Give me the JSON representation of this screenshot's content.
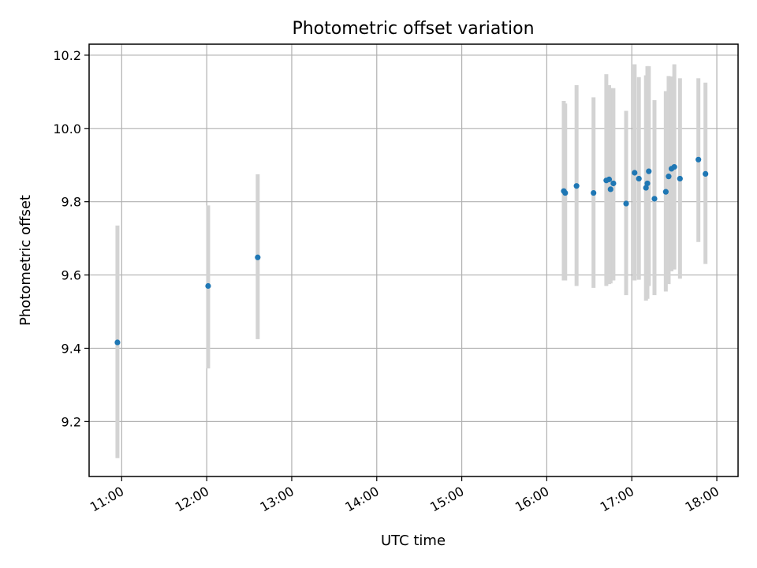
{
  "chart_data": {
    "type": "scatter",
    "title": "Photometric offset variation",
    "xlabel": "UTC time",
    "ylabel": "Photometric offset",
    "grid": true,
    "x_ticks": [
      "11:00",
      "12:00",
      "13:00",
      "14:00",
      "15:00",
      "16:00",
      "17:00",
      "18:00"
    ],
    "x_range": [
      "10:37",
      "18:15"
    ],
    "y_ticks": [
      "9.2",
      "9.4",
      "9.6",
      "9.8",
      "10.0",
      "10.2"
    ],
    "ylim": [
      9.05,
      10.23
    ],
    "colors": {
      "point": "#1f77b4",
      "errorbar": "#d3d3d3"
    },
    "points": [
      {
        "x": "10:57",
        "y": 9.416,
        "lo": 9.1,
        "hi": 9.735
      },
      {
        "x": "12:01",
        "y": 9.57,
        "lo": 9.345,
        "hi": 9.79
      },
      {
        "x": "12:36",
        "y": 9.648,
        "lo": 9.425,
        "hi": 9.875
      },
      {
        "x": "16:12",
        "y": 9.829,
        "lo": 9.585,
        "hi": 10.075
      },
      {
        "x": "16:13",
        "y": 9.824,
        "lo": 9.585,
        "hi": 10.068
      },
      {
        "x": "16:21",
        "y": 9.843,
        "lo": 9.57,
        "hi": 10.118
      },
      {
        "x": "16:33",
        "y": 9.824,
        "lo": 9.565,
        "hi": 10.085
      },
      {
        "x": "16:42",
        "y": 9.858,
        "lo": 9.57,
        "hi": 10.148
      },
      {
        "x": "16:44",
        "y": 9.861,
        "lo": 9.575,
        "hi": 10.118
      },
      {
        "x": "16:45",
        "y": 9.834,
        "lo": 9.577,
        "hi": 10.11
      },
      {
        "x": "16:47",
        "y": 9.85,
        "lo": 9.585,
        "hi": 10.11
      },
      {
        "x": "16:56",
        "y": 9.795,
        "lo": 9.545,
        "hi": 10.048
      },
      {
        "x": "17:02",
        "y": 9.879,
        "lo": 9.585,
        "hi": 10.175
      },
      {
        "x": "17:05",
        "y": 9.863,
        "lo": 9.587,
        "hi": 10.14
      },
      {
        "x": "17:10",
        "y": 9.838,
        "lo": 9.53,
        "hi": 10.145
      },
      {
        "x": "17:11",
        "y": 9.85,
        "lo": 9.535,
        "hi": 10.17
      },
      {
        "x": "17:12",
        "y": 9.883,
        "lo": 9.57,
        "hi": 10.17
      },
      {
        "x": "17:16",
        "y": 9.808,
        "lo": 9.545,
        "hi": 10.077
      },
      {
        "x": "17:24",
        "y": 9.827,
        "lo": 9.555,
        "hi": 10.102
      },
      {
        "x": "17:26",
        "y": 9.869,
        "lo": 9.575,
        "hi": 10.143
      },
      {
        "x": "17:28",
        "y": 9.89,
        "lo": 9.61,
        "hi": 10.142
      },
      {
        "x": "17:30",
        "y": 9.895,
        "lo": 9.615,
        "hi": 10.175
      },
      {
        "x": "17:34",
        "y": 9.863,
        "lo": 9.59,
        "hi": 10.137
      },
      {
        "x": "17:47",
        "y": 9.915,
        "lo": 9.69,
        "hi": 10.137
      },
      {
        "x": "17:52",
        "y": 9.876,
        "lo": 9.63,
        "hi": 10.125
      }
    ]
  }
}
